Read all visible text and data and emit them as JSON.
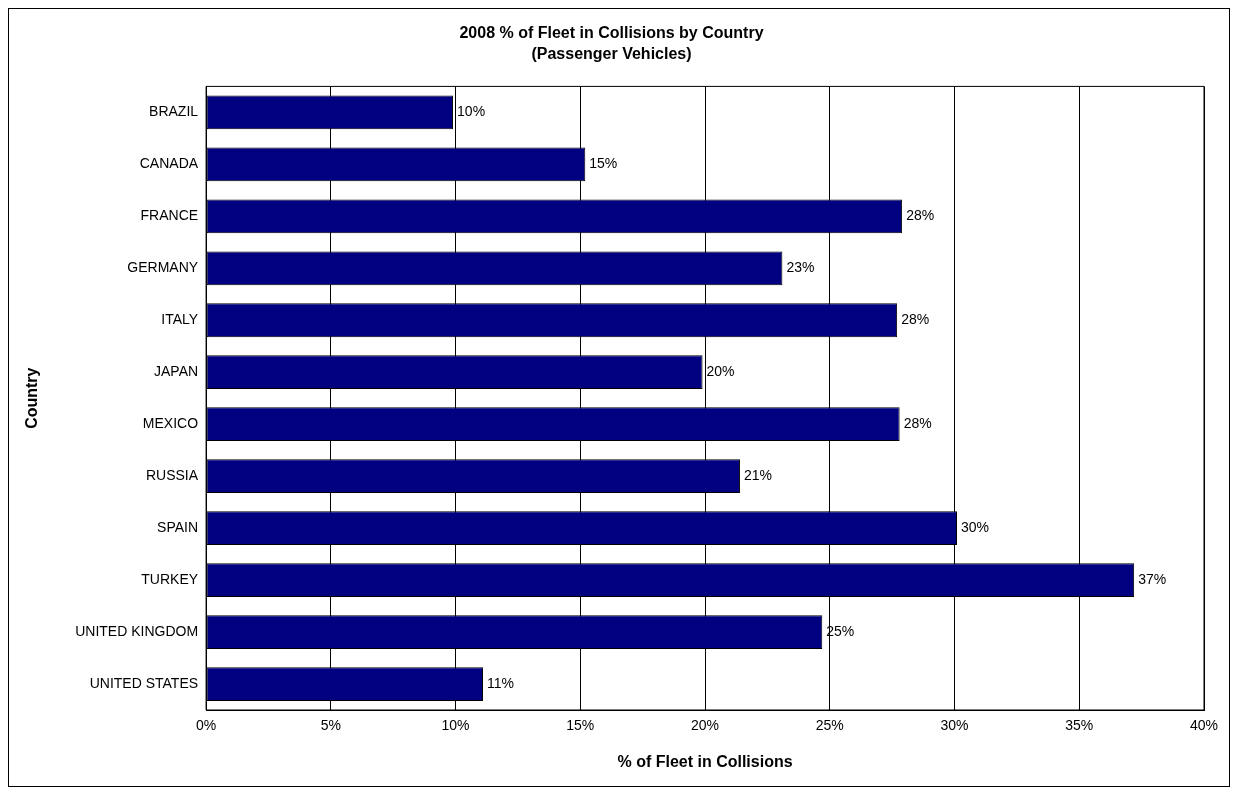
{
  "chart_data": {
    "type": "bar",
    "orientation": "horizontal",
    "title": "2008 % of Fleet in Collisions by Country",
    "subtitle": "(Passenger Vehicles)",
    "xlabel": "% of Fleet in Collisions",
    "ylabel": "Country",
    "categories": [
      "BRAZIL",
      "CANADA",
      "FRANCE",
      "GERMANY",
      "ITALY",
      "JAPAN",
      "MEXICO",
      "RUSSIA",
      "SPAIN",
      "TURKEY",
      "UNITED KINGDOM",
      "UNITED STATES"
    ],
    "values": [
      9.9,
      15.2,
      27.9,
      23.1,
      27.7,
      19.9,
      27.8,
      21.4,
      30.1,
      37.2,
      24.7,
      11.1
    ],
    "value_labels": [
      "10%",
      "15%",
      "28%",
      "23%",
      "28%",
      "20%",
      "28%",
      "21%",
      "30%",
      "37%",
      "25%",
      "11%"
    ],
    "color": "#000080",
    "xlim": [
      0,
      40
    ],
    "xticks": [
      {
        "value": 0,
        "label": "0%"
      },
      {
        "value": 5,
        "label": "5%"
      },
      {
        "value": 10,
        "label": "10%"
      },
      {
        "value": 15,
        "label": "15%"
      },
      {
        "value": 20,
        "label": "20%"
      },
      {
        "value": 25,
        "label": "25%"
      },
      {
        "value": 30,
        "label": "30%"
      },
      {
        "value": 35,
        "label": "35%"
      },
      {
        "value": 40,
        "label": "40%"
      }
    ],
    "grid": "x",
    "legend": false
  }
}
